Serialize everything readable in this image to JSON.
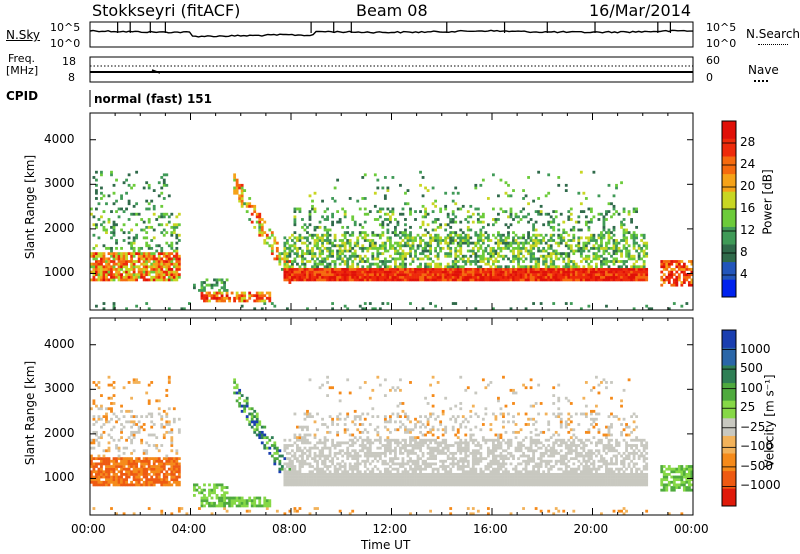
{
  "header": {
    "station": "Stokkseyri (fitACF)",
    "beam": "Beam 08",
    "date": "16/Mar/2014"
  },
  "top_panels": {
    "nsky_label": "N.Sky",
    "nsky_top": "10^5",
    "nsky_bottom": "10^0",
    "nsearch_label": "N.Search",
    "nsearch_top": "10^5",
    "nsearch_bottom": "10^0",
    "freq_label": "Freq.",
    "freq_unit": "[MHz]",
    "freq_ticks": [
      "18",
      "8"
    ],
    "nave_label": "Nave",
    "nave_ticks": [
      "60",
      "0"
    ],
    "cpid_label": "CPID",
    "cpid_value": "normal (fast) 151"
  },
  "chart_data": [
    {
      "type": "heatmap",
      "name": "power",
      "ylabel": "Slant Range [km]",
      "xlabel": "Time UT",
      "x_ticks": [
        "00:00",
        "04:00",
        "08:00",
        "12:00",
        "16:00",
        "20:00",
        "00:00"
      ],
      "xlim_hours": [
        0,
        24
      ],
      "ylim_km": [
        180,
        4600
      ],
      "y_ticks": [
        1000,
        2000,
        3000,
        4000
      ],
      "colorbar": {
        "label": "Power [dB]",
        "ticks": [
          4,
          8,
          12,
          16,
          20,
          24,
          28
        ],
        "range": [
          0,
          30
        ],
        "colors": [
          "#0022ee",
          "#2255bb",
          "#2f6a4a",
          "#3f9a57",
          "#6ccb3a",
          "#c8d623",
          "#f5a218",
          "#f56a0e",
          "#ee2a0a",
          "#e01008"
        ]
      }
    },
    {
      "type": "heatmap",
      "name": "velocity",
      "ylabel": "Slant Range [km]",
      "xlabel": "Time UT",
      "x_ticks": [
        "00:00",
        "04:00",
        "08:00",
        "12:00",
        "16:00",
        "20:00",
        "00:00"
      ],
      "xlim_hours": [
        0,
        24
      ],
      "ylim_km": [
        180,
        4600
      ],
      "y_ticks": [
        1000,
        2000,
        3000,
        4000
      ],
      "colorbar": {
        "label": "Velocity [m s⁻¹]",
        "ticks": [
          "1000",
          "500",
          "100",
          "25",
          "−25",
          "−100",
          "−500",
          "−1000"
        ],
        "colors": [
          "#1a3eb0",
          "#2a66a8",
          "#2f7f55",
          "#4faa3e",
          "#86d846",
          "#c8c8c0",
          "#f2b25a",
          "#f58a1a",
          "#ee5a12",
          "#e01a0a"
        ]
      }
    }
  ],
  "colors": {
    "ground_gray": "#c8c8c0"
  }
}
